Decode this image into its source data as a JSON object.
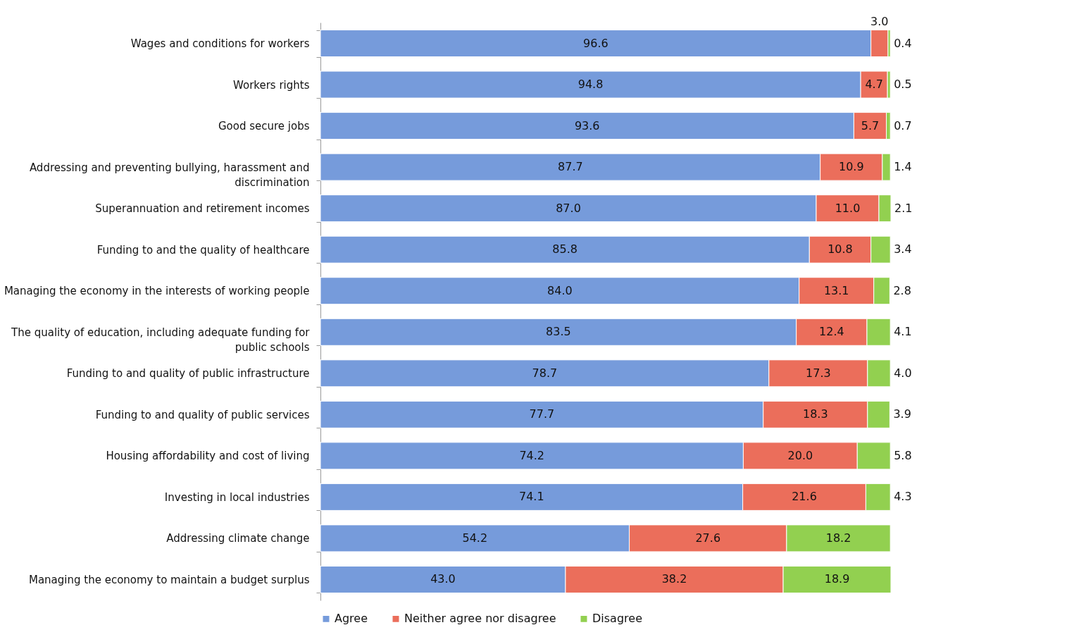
{
  "chart_data": {
    "type": "bar",
    "orientation": "horizontal",
    "stacked": true,
    "legend": "bottom",
    "grid": false,
    "categories": [
      "Wages and conditions for workers",
      "Workers  rights",
      "Good secure jobs",
      "Addressing and preventing bullying, harassment and discrimination",
      "Superannuation and retirement incomes",
      "Funding to and the quality of healthcare",
      "Managing the economy in the interests of working people",
      "The quality of education, including adequate funding for public schools",
      "Funding to and quality of public infrastructure",
      "Funding to and quality of public services",
      "Housing affordability and cost of living",
      "Investing in local industries",
      "Addressing climate change",
      "Managing the economy to maintain a budget surplus"
    ],
    "series": [
      {
        "name": "Agree",
        "color": "#769bdb",
        "values": [
          96.6,
          94.8,
          93.6,
          87.7,
          87.0,
          85.8,
          84.0,
          83.5,
          78.7,
          77.7,
          74.2,
          74.1,
          54.2,
          43.0
        ],
        "value_labels": [
          "96.6",
          "94.8",
          "93.6",
          "87.7",
          "87.0",
          "85.8",
          "84.0",
          "83.5",
          "78.7",
          "77.7",
          "74.2",
          "74.1",
          "54.2",
          "43.0"
        ]
      },
      {
        "name": "Neither agree nor disagree",
        "color": "#eb6e5b",
        "values": [
          3.0,
          4.7,
          5.7,
          10.9,
          11.0,
          10.8,
          13.1,
          12.4,
          17.3,
          18.3,
          20.0,
          21.6,
          27.6,
          38.2
        ],
        "value_labels": [
          "3.0",
          "4.7",
          "5.7",
          "10.9",
          "11.0",
          "10.8",
          "13.1",
          "12.4",
          "17.3",
          "18.3",
          "20.0",
          "21.6",
          "27.6",
          "38.2"
        ]
      },
      {
        "name": "Disagree",
        "color": "#92d050",
        "values": [
          0.4,
          0.5,
          0.7,
          1.4,
          2.1,
          3.4,
          2.8,
          4.1,
          4.0,
          3.9,
          5.8,
          4.3,
          18.2,
          18.9
        ],
        "value_labels": [
          "0.4",
          "0.5",
          "0.7",
          "1.4",
          "2.1",
          "3.4",
          "2.8",
          "4.1",
          "4.0",
          "3.9",
          "5.8",
          "4.3",
          "18.2",
          "18.9"
        ]
      }
    ]
  }
}
